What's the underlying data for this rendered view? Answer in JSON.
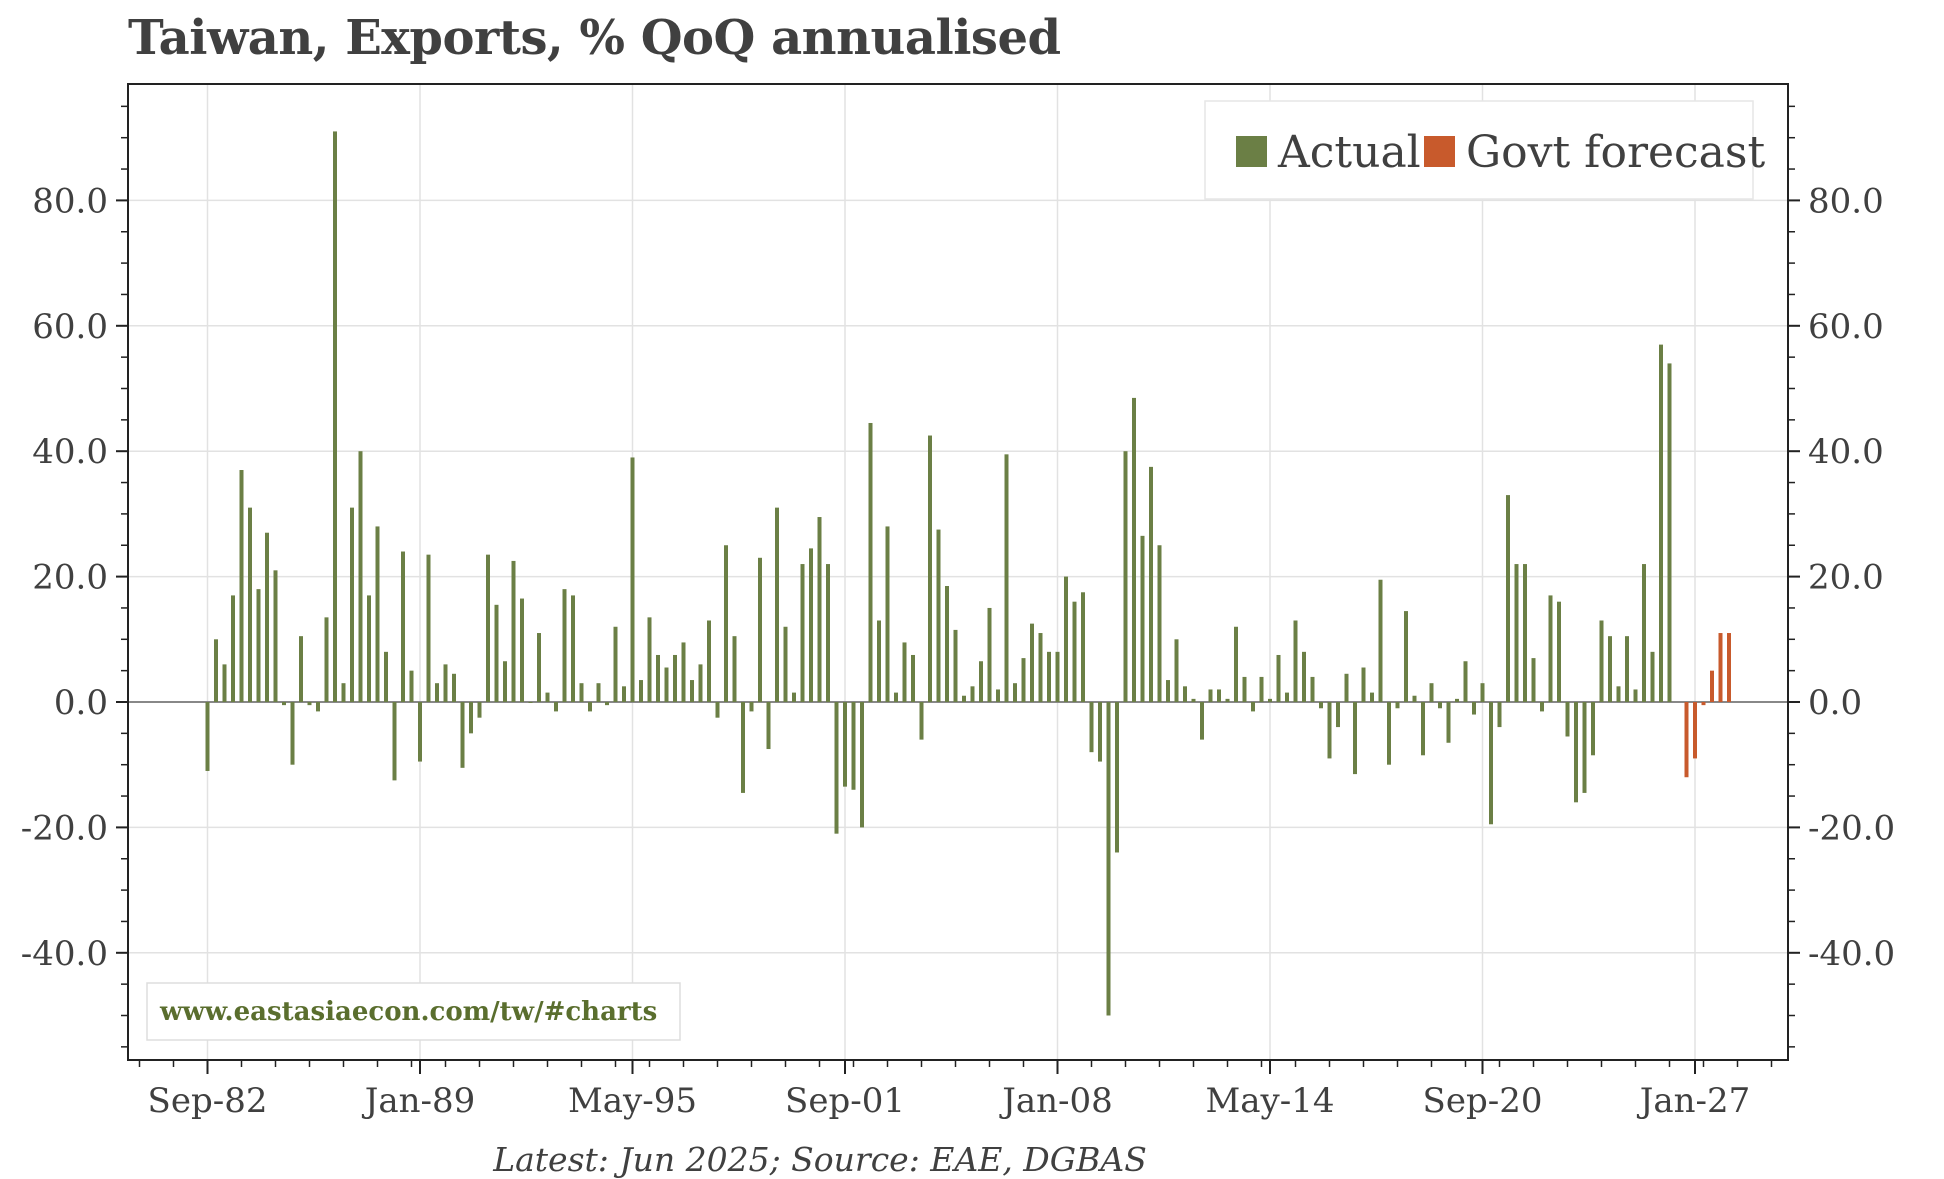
{
  "chart_data": {
    "type": "bar",
    "title": "Taiwan, Exports, % QoQ annualised",
    "footer": "Latest: Jun 2025; Source: EAE, DGBAS",
    "watermark": "www.eastasiaecon.com/tw/#charts",
    "ylim": [
      -56,
      98
    ],
    "y_ticks": [
      80,
      60,
      40,
      20,
      0,
      -20,
      -40
    ],
    "y_tick_labels": [
      "80.0",
      "60.0",
      "40.0",
      "20.0",
      "0.0",
      "-20.0",
      "-40.0"
    ],
    "x_tick_labels": [
      "Sep-82",
      "Jan-89",
      "May-95",
      "Sep-01",
      "Jan-08",
      "May-14",
      "Sep-20",
      "Jan-27"
    ],
    "first_period": "Sep-82",
    "period_months": 3,
    "grid": true,
    "legend_position": "top-right",
    "colors": {
      "actual": "#6b7f45",
      "forecast": "#c85a2c",
      "zero_line": "#888888",
      "grid": "#e2e2e2"
    },
    "series": [
      {
        "name": "Actual",
        "values": [
          -11,
          10,
          6,
          17,
          37,
          31,
          18,
          27,
          21,
          -0.5,
          -10,
          10.5,
          -0.5,
          -1.5,
          13.5,
          91,
          3,
          31,
          40,
          17,
          28,
          8,
          -12.5,
          24,
          5,
          -9.5,
          23.5,
          3,
          6,
          4.5,
          -10.5,
          -5,
          -2.5,
          23.5,
          15.5,
          6.5,
          22.5,
          16.5,
          0,
          11,
          1.5,
          -1.5,
          18,
          17,
          3,
          -1.5,
          3,
          -0.5,
          12,
          2.5,
          39,
          3.5,
          13.5,
          7.5,
          5.5,
          7.5,
          9.5,
          3.5,
          6,
          13,
          -2.5,
          25,
          10.5,
          -14.5,
          -1.5,
          23,
          -7.5,
          31,
          12,
          1.5,
          22,
          24.5,
          29.5,
          22,
          -21,
          -13.5,
          -14,
          -20,
          44.5,
          13,
          28,
          1.5,
          9.5,
          7.5,
          -6,
          42.5,
          27.5,
          18.5,
          11.5,
          1,
          2.5,
          6.5,
          15,
          2,
          39.5,
          3,
          7,
          12.5,
          11,
          8,
          8,
          20,
          16,
          17.5,
          -8,
          -9.5,
          -50,
          -24,
          40,
          48.5,
          26.5,
          37.5,
          25,
          3.5,
          10,
          2.5,
          0.5,
          -6,
          2,
          2,
          0.5,
          12,
          4,
          -1.5,
          4,
          0.5,
          7.5,
          1.5,
          13,
          8,
          4,
          -1,
          -9,
          -4,
          4.5,
          -11.5,
          5.5,
          1.5,
          19.5,
          -10,
          -1,
          14.5,
          1,
          -8.5,
          3,
          -1,
          -6.5,
          0.5,
          6.5,
          -2,
          3,
          -19.5,
          -4,
          33,
          22,
          22,
          7,
          -1.5,
          17,
          16,
          -5.5,
          -16,
          -14.5,
          -8.5,
          13,
          10.5,
          2.5,
          10.5,
          2,
          22,
          8,
          57,
          54
        ]
      },
      {
        "name": "Govt forecast",
        "start_index": 174,
        "values": [
          -12,
          -9,
          -0.5,
          5,
          11,
          11
        ]
      }
    ]
  }
}
